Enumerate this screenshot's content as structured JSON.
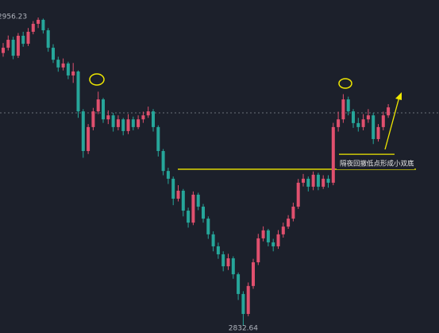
{
  "chart_data": {
    "type": "candlestick",
    "ylim": [
      2829.76,
      2963.24
    ],
    "up_color": "#e0506e",
    "down_color": "#26a69a",
    "candles": [
      [
        2942.0,
        2946.0,
        2940.5,
        2944.1
      ],
      [
        2944.1,
        2949.0,
        2943.0,
        2947.3
      ],
      [
        2947.3,
        2948.5,
        2939.5,
        2940.9
      ],
      [
        2940.9,
        2950.0,
        2940.0,
        2948.9
      ],
      [
        2948.9,
        2950.5,
        2944.5,
        2945.7
      ],
      [
        2945.7,
        2952.0,
        2944.8,
        2950.5
      ],
      [
        2950.5,
        2954.8,
        2949.5,
        2953.7
      ],
      [
        2953.7,
        2956.23,
        2952.0,
        2955.3
      ],
      [
        2955.3,
        2955.8,
        2949.8,
        2951.1
      ],
      [
        2951.1,
        2952.0,
        2942.5,
        2944.1
      ],
      [
        2944.1,
        2945.5,
        2938.0,
        2939.3
      ],
      [
        2939.3,
        2940.5,
        2934.5,
        2936.2
      ],
      [
        2936.2,
        2939.8,
        2935.0,
        2937.8
      ],
      [
        2937.8,
        2938.5,
        2931.5,
        2933.0
      ],
      [
        2933.0,
        2938.0,
        2930.0,
        2934.6
      ],
      [
        2934.6,
        2935.0,
        2916.0,
        2918.6
      ],
      [
        2918.6,
        2919.5,
        2900.0,
        2902.7
      ],
      [
        2902.7,
        2913.5,
        2901.5,
        2912.3
      ],
      [
        2912.3,
        2920.0,
        2911.0,
        2918.6
      ],
      [
        2918.6,
        2926.5,
        2917.5,
        2923.4
      ],
      [
        2923.4,
        2924.0,
        2914.0,
        2915.4
      ],
      [
        2915.4,
        2919.0,
        2913.5,
        2917.0
      ],
      [
        2917.0,
        2918.0,
        2910.5,
        2912.3
      ],
      [
        2912.3,
        2917.0,
        2911.0,
        2915.4
      ],
      [
        2915.4,
        2916.0,
        2909.0,
        2910.7
      ],
      [
        2910.7,
        2917.5,
        2909.5,
        2915.4
      ],
      [
        2915.4,
        2916.5,
        2911.0,
        2912.3
      ],
      [
        2912.3,
        2917.0,
        2911.5,
        2915.4
      ],
      [
        2915.4,
        2918.5,
        2914.0,
        2917.0
      ],
      [
        2917.0,
        2920.5,
        2916.0,
        2918.6
      ],
      [
        2918.6,
        2919.5,
        2910.5,
        2912.3
      ],
      [
        2912.3,
        2913.0,
        2900.5,
        2902.7
      ],
      [
        2902.7,
        2903.5,
        2893.0,
        2894.7
      ],
      [
        2894.7,
        2896.0,
        2889.5,
        2891.6
      ],
      [
        2891.6,
        2892.5,
        2881.0,
        2883.6
      ],
      [
        2883.6,
        2889.0,
        2882.5,
        2886.8
      ],
      [
        2886.8,
        2887.5,
        2876.5,
        2878.8
      ],
      [
        2878.8,
        2880.0,
        2872.0,
        2874.0
      ],
      [
        2874.0,
        2886.5,
        2873.0,
        2885.2
      ],
      [
        2885.2,
        2886.0,
        2879.0,
        2880.4
      ],
      [
        2880.4,
        2881.5,
        2874.0,
        2875.6
      ],
      [
        2875.6,
        2876.5,
        2867.5,
        2869.3
      ],
      [
        2869.3,
        2870.5,
        2862.5,
        2864.5
      ],
      [
        2864.5,
        2866.0,
        2859.5,
        2861.3
      ],
      [
        2861.3,
        2862.5,
        2854.5,
        2856.5
      ],
      [
        2856.5,
        2861.5,
        2855.0,
        2859.7
      ],
      [
        2859.7,
        2860.5,
        2851.5,
        2853.3
      ],
      [
        2853.3,
        2854.0,
        2843.0,
        2845.4
      ],
      [
        2845.4,
        2846.5,
        2832.64,
        2837.4
      ],
      [
        2837.4,
        2850.0,
        2836.5,
        2848.6
      ],
      [
        2848.6,
        2859.5,
        2847.5,
        2858.1
      ],
      [
        2858.1,
        2869.5,
        2857.0,
        2867.7
      ],
      [
        2867.7,
        2872.5,
        2866.5,
        2870.9
      ],
      [
        2870.9,
        2871.5,
        2864.5,
        2866.1
      ],
      [
        2866.1,
        2867.5,
        2862.5,
        2864.5
      ],
      [
        2864.5,
        2871.0,
        2863.5,
        2869.3
      ],
      [
        2869.3,
        2874.0,
        2868.0,
        2872.4
      ],
      [
        2872.4,
        2877.0,
        2871.5,
        2875.6
      ],
      [
        2875.6,
        2882.0,
        2874.5,
        2880.4
      ],
      [
        2880.4,
        2891.5,
        2879.5,
        2890.0
      ],
      [
        2890.0,
        2893.5,
        2888.5,
        2891.6
      ],
      [
        2891.6,
        2892.5,
        2886.5,
        2888.4
      ],
      [
        2888.4,
        2894.5,
        2887.0,
        2893.2
      ],
      [
        2893.2,
        2894.0,
        2887.0,
        2888.4
      ],
      [
        2888.4,
        2893.0,
        2887.5,
        2891.6
      ],
      [
        2891.6,
        2893.0,
        2888.0,
        2890.0
      ],
      [
        2890.0,
        2914.0,
        2889.0,
        2912.3
      ],
      [
        2912.3,
        2918.5,
        2910.5,
        2915.4
      ],
      [
        2915.4,
        2925.5,
        2914.0,
        2923.4
      ],
      [
        2923.4,
        2924.5,
        2917.0,
        2918.6
      ],
      [
        2918.6,
        2919.5,
        2912.0,
        2913.9
      ],
      [
        2913.9,
        2916.0,
        2910.5,
        2912.3
      ],
      [
        2912.3,
        2917.5,
        2911.0,
        2915.4
      ],
      [
        2915.4,
        2919.5,
        2914.0,
        2917.0
      ],
      [
        2917.0,
        2918.0,
        2905.5,
        2907.5
      ],
      [
        2907.5,
        2913.5,
        2906.5,
        2912.3
      ],
      [
        2912.3,
        2918.5,
        2911.0,
        2917.0
      ],
      [
        2917.0,
        2921.5,
        2916.0,
        2920.2
      ]
    ],
    "max_marker": {
      "value": 2956.23,
      "label": "2956.23"
    },
    "min_marker": {
      "value": 2832.64,
      "label": "2832.64"
    },
    "last_price_line": 2918.0,
    "support_line": 2895.4,
    "neckline": 2901.4,
    "annotation": "隔夜回撤低点形成小双底"
  }
}
